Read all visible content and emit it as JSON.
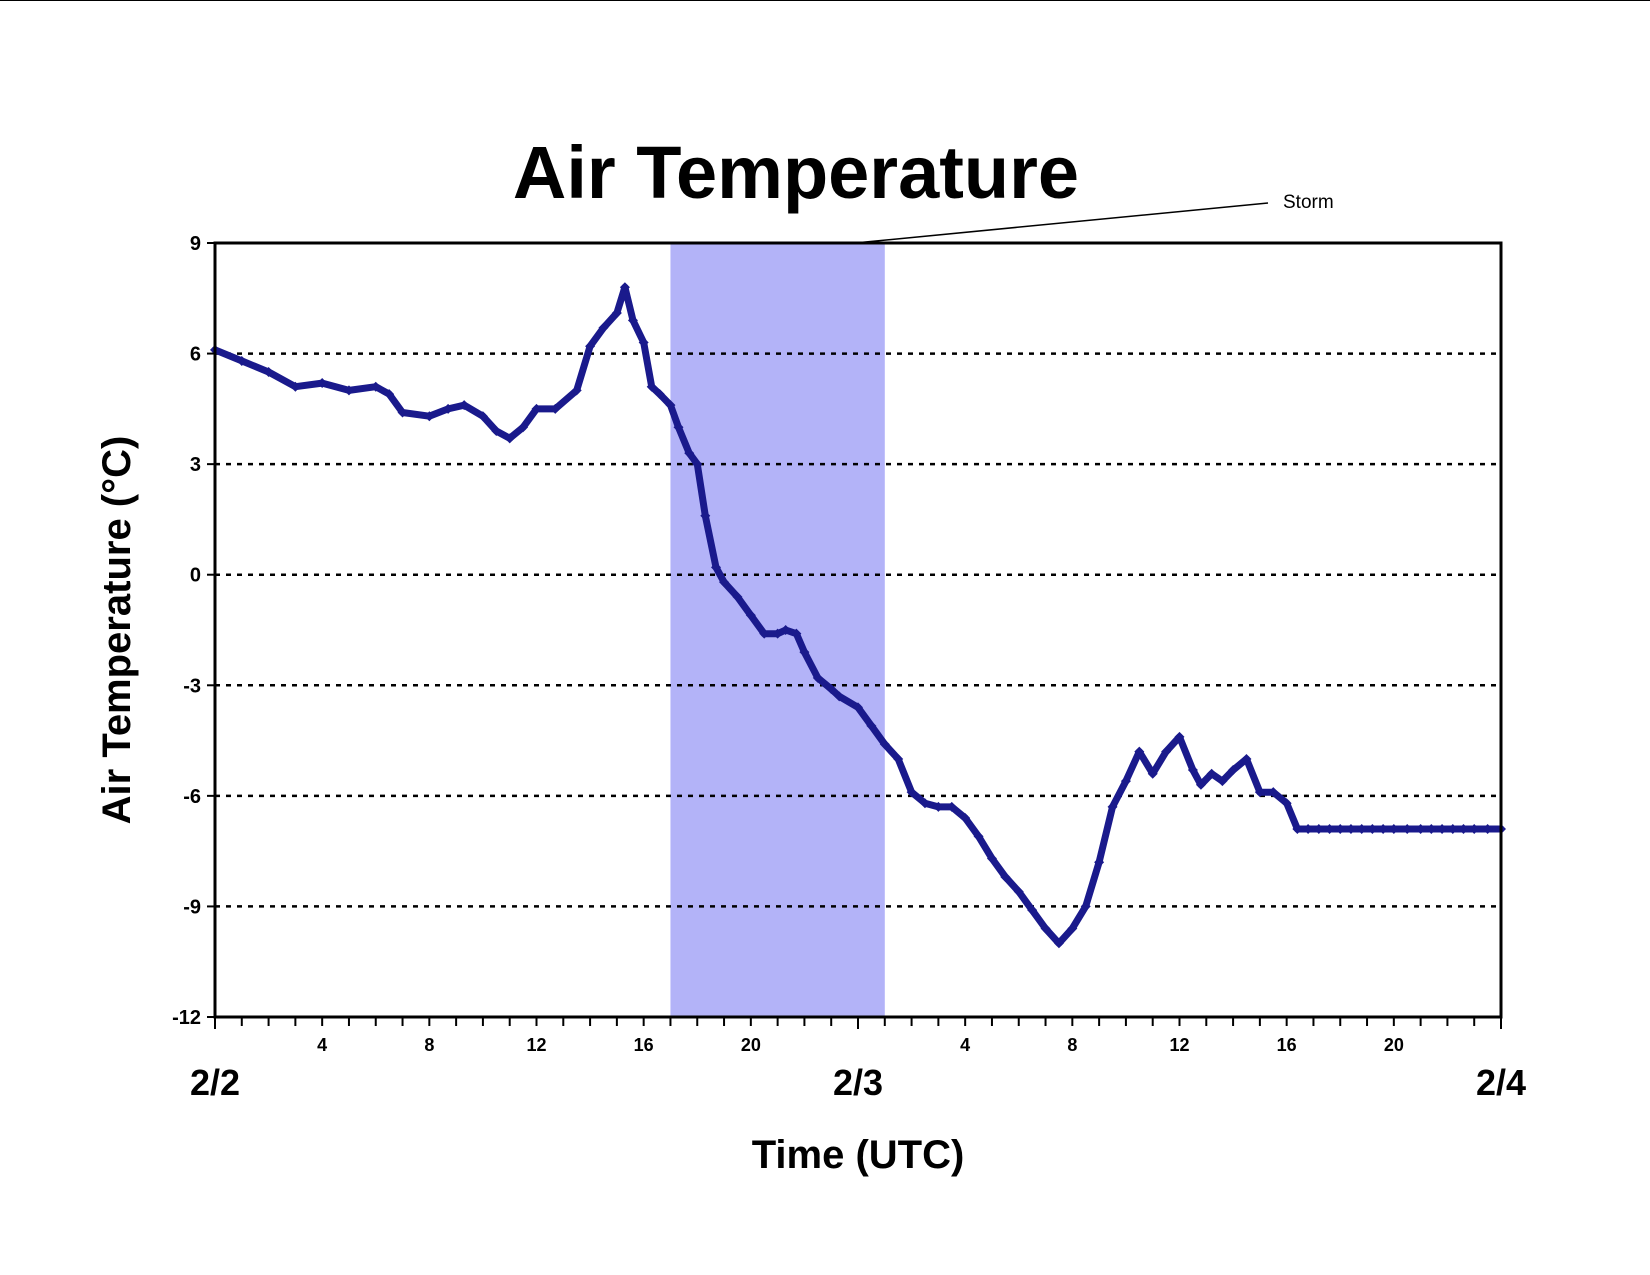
{
  "chart_data": {
    "type": "line",
    "title": "Air Temperature",
    "xlabel": "Time (UTC)",
    "ylabel": "Air Temperature (°C)",
    "ylim": [
      -12,
      9
    ],
    "yticks": [
      9,
      6,
      3,
      0,
      -3,
      -6,
      -9,
      -12
    ],
    "xlim_hours": [
      0,
      48
    ],
    "xtick_hour_labels": [
      "4",
      "8",
      "12",
      "16",
      "20",
      "4",
      "8",
      "12",
      "16",
      "20"
    ],
    "date_labels": [
      "2/2",
      "2/3",
      "2/4"
    ],
    "grid": "horizontal dotted",
    "legend": "none",
    "series": [
      {
        "color": "#1a1a8c",
        "marker": "diamond",
        "x_hours": [
          0,
          1,
          2,
          3,
          4,
          5,
          6,
          6.5,
          7,
          8,
          8.7,
          9.3,
          10,
          10.5,
          11,
          11.5,
          12,
          12.7,
          13.5,
          14,
          14.5,
          15,
          15.3,
          15.6,
          16,
          16.3,
          16.6,
          17,
          17.3,
          17.7,
          18,
          18.3,
          18.7,
          19,
          19.5,
          20,
          20.5,
          21,
          21.3,
          21.7,
          22,
          22.5,
          23,
          23.3,
          24,
          24.5,
          25,
          25.5,
          26,
          26.5,
          27,
          27.5,
          28,
          28.5,
          29,
          29.5,
          30,
          30.5,
          31,
          31.5,
          32,
          32.5,
          33,
          33.5,
          34,
          34.5,
          35,
          35.5,
          36,
          36.5,
          36.8,
          37.2,
          37.6,
          38,
          38.5,
          39,
          39.5,
          40,
          40.4,
          40.8,
          41.2,
          41.6,
          42,
          42.4,
          42.8,
          43.2,
          43.6,
          44,
          44.5,
          45,
          45.4,
          45.8,
          46.2,
          46.6,
          47,
          47.5,
          48
        ],
        "values": [
          6.1,
          5.8,
          5.5,
          5.1,
          5.2,
          5.0,
          5.1,
          4.9,
          4.4,
          4.3,
          4.5,
          4.6,
          4.3,
          3.9,
          3.7,
          4.0,
          4.5,
          4.5,
          5.0,
          6.2,
          6.7,
          7.1,
          7.8,
          6.9,
          6.3,
          5.1,
          4.9,
          4.6,
          4.0,
          3.3,
          3.0,
          1.6,
          0.2,
          -0.2,
          -0.6,
          -1.1,
          -1.6,
          -1.6,
          -1.5,
          -1.6,
          -2.1,
          -2.8,
          -3.1,
          -3.3,
          -3.6,
          -4.1,
          -4.6,
          -5.0,
          -5.9,
          -6.2,
          -6.3,
          -6.3,
          -6.6,
          -7.1,
          -7.7,
          -8.2,
          -8.6,
          -9.1,
          -9.6,
          -10.0,
          -9.6,
          -9.0,
          -7.8,
          -6.3,
          -5.6,
          -4.8,
          -5.4,
          -4.8,
          -4.4,
          -5.3,
          -5.7,
          -5.4,
          -5.6,
          -5.3,
          -5.0,
          -5.9,
          -5.9,
          -6.2,
          -6.9,
          -6.9,
          -6.9,
          -6.9,
          -6.9,
          -6.9,
          -6.9,
          -6.9,
          -6.9,
          -6.9,
          -6.9,
          -6.9,
          -6.9,
          -6.9,
          -6.9,
          -6.9,
          -6.9,
          -6.9,
          -6.9
        ]
      }
    ],
    "shaded_band": {
      "label": "Storm",
      "x_start_hours": 17,
      "x_end_hours": 25,
      "color": "#b3b3f8"
    }
  }
}
